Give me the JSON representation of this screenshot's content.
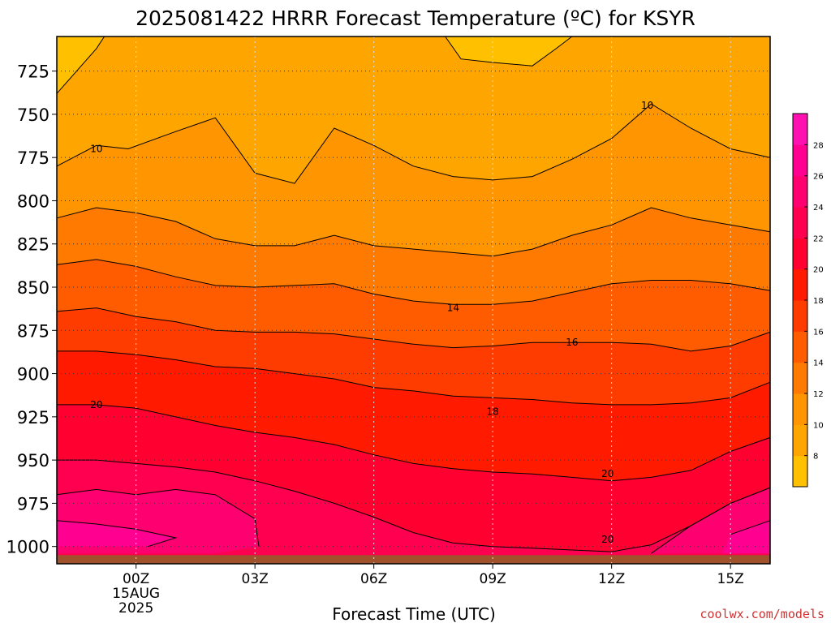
{
  "chart_data": {
    "type": "contour",
    "title": "2025081422 HRRR Forecast Temperature (ºC) for KSYR",
    "xlabel": "Forecast Time (UTC)",
    "ylabel": "",
    "credit": "coolwx.com/models",
    "x_ticks": [
      {
        "label": "00Z",
        "sub": [
          "15AUG",
          "2025"
        ],
        "hour": 0
      },
      {
        "label": "03Z",
        "hour": 3
      },
      {
        "label": "06Z",
        "hour": 6
      },
      {
        "label": "09Z",
        "hour": 9
      },
      {
        "label": "12Z",
        "hour": 12
      },
      {
        "label": "15Z",
        "hour": 15
      }
    ],
    "xlim": [
      -2,
      16
    ],
    "y_ticks": [
      725,
      750,
      775,
      800,
      825,
      850,
      875,
      900,
      925,
      950,
      975,
      1000
    ],
    "ylim": [
      1010,
      705
    ],
    "ground_pressure": 1005,
    "colorbar": {
      "ticks": [
        8,
        10,
        12,
        14,
        16,
        18,
        20,
        22,
        24,
        26,
        28
      ],
      "levels": [
        6,
        8,
        10,
        12,
        14,
        16,
        18,
        20,
        22,
        24,
        26,
        28,
        30
      ],
      "colors": [
        "#ffc000",
        "#ffa500",
        "#ff9500",
        "#ff7a00",
        "#ff5c00",
        "#ff3c00",
        "#ff1a00",
        "#ff0030",
        "#ff0050",
        "#ff0070",
        "#ff0090",
        "#ff10b0",
        "#ff20c0"
      ]
    },
    "contour_labels": [
      {
        "text": "10",
        "hour": -1.0,
        "p": 770
      },
      {
        "text": "10",
        "hour": 12.9,
        "p": 745
      },
      {
        "text": "14",
        "hour": 8.0,
        "p": 862
      },
      {
        "text": "16",
        "hour": 11.0,
        "p": 882
      },
      {
        "text": "20",
        "hour": -1.0,
        "p": 918
      },
      {
        "text": "18",
        "hour": 9.0,
        "p": 922
      },
      {
        "text": "20",
        "hour": 11.9,
        "p": 958
      },
      {
        "text": "20",
        "hour": 11.9,
        "p": 996
      }
    ]
  }
}
